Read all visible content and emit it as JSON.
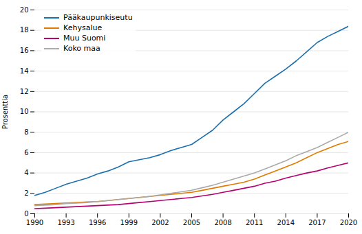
{
  "chart_data": {
    "type": "line",
    "ylabel": "Prosenttia",
    "x": [
      1990,
      1991,
      1992,
      1993,
      1994,
      1995,
      1996,
      1997,
      1998,
      1999,
      2000,
      2001,
      2002,
      2003,
      2004,
      2005,
      2006,
      2007,
      2008,
      2009,
      2010,
      2011,
      2012,
      2013,
      2014,
      2015,
      2016,
      2017,
      2018,
      2019,
      2020
    ],
    "series": [
      {
        "name": "Pääkaupunkiseutu",
        "color": "#1a6faf",
        "values": [
          1.8,
          2.1,
          2.5,
          2.9,
          3.2,
          3.5,
          3.9,
          4.2,
          4.6,
          5.1,
          5.3,
          5.5,
          5.8,
          6.2,
          6.5,
          6.8,
          7.5,
          8.2,
          9.2,
          10.0,
          10.8,
          11.8,
          12.8,
          13.5,
          14.2,
          15.0,
          15.9,
          16.8,
          17.4,
          17.9,
          18.4
        ]
      },
      {
        "name": "Kehysalue",
        "color": "#e07b00",
        "values": [
          0.9,
          0.95,
          1.0,
          1.05,
          1.1,
          1.15,
          1.2,
          1.3,
          1.4,
          1.5,
          1.6,
          1.7,
          1.8,
          1.9,
          2.0,
          2.1,
          2.3,
          2.5,
          2.7,
          2.9,
          3.1,
          3.4,
          3.8,
          4.2,
          4.6,
          5.0,
          5.5,
          6.0,
          6.4,
          6.8,
          7.1
        ]
      },
      {
        "name": "Muu Suomi",
        "color": "#b5006e",
        "values": [
          0.5,
          0.55,
          0.6,
          0.65,
          0.7,
          0.75,
          0.8,
          0.85,
          0.9,
          1.0,
          1.1,
          1.2,
          1.3,
          1.4,
          1.5,
          1.6,
          1.75,
          1.9,
          2.1,
          2.3,
          2.5,
          2.7,
          3.0,
          3.2,
          3.5,
          3.75,
          4.0,
          4.2,
          4.5,
          4.75,
          5.0
        ]
      },
      {
        "name": "Koko maa",
        "color": "#aaaaaa",
        "values": [
          0.8,
          0.85,
          0.9,
          1.0,
          1.05,
          1.1,
          1.2,
          1.3,
          1.4,
          1.5,
          1.6,
          1.7,
          1.85,
          2.0,
          2.15,
          2.3,
          2.55,
          2.8,
          3.1,
          3.4,
          3.7,
          4.0,
          4.4,
          4.8,
          5.2,
          5.7,
          6.1,
          6.5,
          7.0,
          7.5,
          8.0
        ]
      }
    ],
    "xlim": [
      1990,
      2020
    ],
    "xticks": [
      1990,
      1993,
      1996,
      1999,
      2002,
      2005,
      2008,
      2011,
      2014,
      2017,
      2020
    ],
    "ylim": [
      0,
      20
    ],
    "yticks": [
      0,
      2,
      4,
      6,
      8,
      10,
      12,
      14,
      16,
      18,
      20
    ],
    "grid": true,
    "legend": "upper left"
  }
}
